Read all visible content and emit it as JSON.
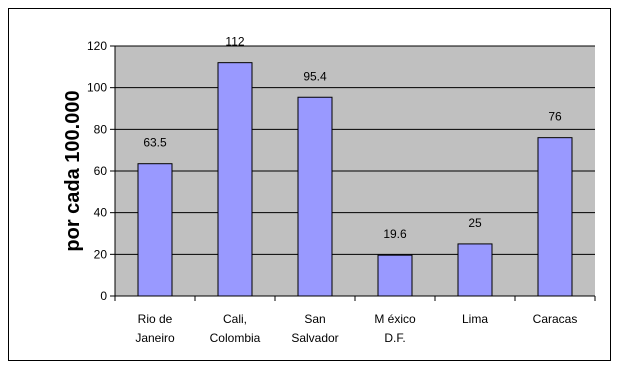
{
  "chart_data": {
    "type": "bar",
    "title": "",
    "xlabel": "",
    "ylabel": "por cada 100.000",
    "ylim": [
      0,
      120
    ],
    "yticks": [
      0,
      20,
      40,
      60,
      80,
      100,
      120
    ],
    "categories": [
      [
        "Rio de",
        "Janeiro"
      ],
      [
        "Cali,",
        "Colombia"
      ],
      [
        "San",
        "Salvador"
      ],
      [
        "M éxico",
        "D.F."
      ],
      [
        "Lima"
      ],
      [
        "Caracas"
      ]
    ],
    "values": [
      63.5,
      112,
      95.4,
      19.6,
      25,
      76
    ],
    "data_labels": [
      "63.5",
      "112",
      "95.4",
      "19.6",
      "25",
      "76"
    ],
    "grid": true,
    "legend": "none",
    "colors": {
      "plot_background": "#c0c0c0",
      "bar_fill": "#9999ff",
      "bar_stroke": "#000000",
      "grid": "#000000"
    }
  }
}
